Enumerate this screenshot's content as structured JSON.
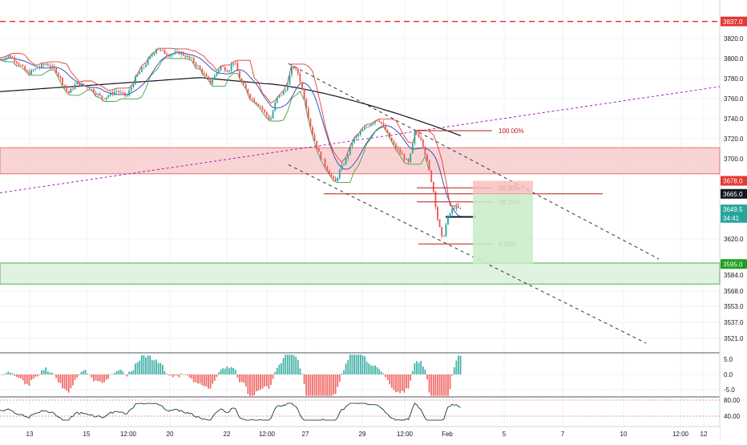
{
  "chart_data": {
    "type": "candlestick",
    "price_axis": {
      "ylim": [
        3505,
        3846
      ],
      "tick_labels": [
        "3820.0",
        "3800.0",
        "3780.0",
        "3760.0",
        "3740.0",
        "3720.0",
        "3700.0",
        "3620.0",
        "3584.0",
        "3568.0",
        "3553.0",
        "3537.0",
        "3521.0"
      ],
      "tick_values": [
        3820,
        3800,
        3780,
        3760,
        3740,
        3720,
        3700,
        3620,
        3584,
        3568,
        3553,
        3537,
        3521
      ],
      "price_tags": [
        {
          "value": 3837.0,
          "label": "3837.0",
          "color": "#e53935"
        },
        {
          "value": 3678.0,
          "label": "3678.0",
          "color": "#e53935"
        },
        {
          "value": 3665.0,
          "label": "3665.0",
          "color": "#131722"
        },
        {
          "value": 3649.5,
          "label": "3649.5",
          "color": "#26a69a"
        },
        {
          "value": 3641.0,
          "label": "34:41",
          "color": "#26a69a"
        },
        {
          "value": 3595.0,
          "label": "3595.0",
          "color": "#1e9e1e"
        }
      ]
    },
    "time_axis": {
      "labels": [
        "13",
        "15",
        "12:00",
        "20",
        "22",
        "12:00",
        "27",
        "29",
        "12:00",
        "Feb",
        "5",
        "7",
        "10",
        "12:00",
        "12"
      ]
    },
    "zones": [
      {
        "name": "resistance-zone",
        "from": 3685,
        "to": 3711,
        "color": "#f5c6c6"
      },
      {
        "name": "support-zone",
        "from": 3575,
        "to": 3596,
        "color": "#d6efd6"
      }
    ],
    "horizontal_levels": [
      {
        "value": 3837,
        "style": "dashed",
        "color": "#e53935"
      }
    ],
    "fibonacci": {
      "levels": [
        {
          "label": "100.00%",
          "value": 3728
        },
        {
          "label": "50.00%",
          "value": 3671
        },
        {
          "label": "38.20%",
          "value": 3657
        },
        {
          "label": "0.00%",
          "value": 3615
        }
      ]
    },
    "position": {
      "entry": 3665,
      "stop": 3678,
      "target": 3595
    },
    "candles_summary": {
      "start_price": 3800,
      "high": 3810,
      "end_price": 3649.5
    },
    "macd": {
      "tick_labels": [
        "5.0",
        "0.0",
        "-5.0"
      ],
      "tick_values": [
        5,
        0,
        -5
      ]
    },
    "rsi": {
      "tick_labels": [
        "80.00",
        "40.00"
      ],
      "tick_values": [
        80,
        40
      ]
    }
  }
}
